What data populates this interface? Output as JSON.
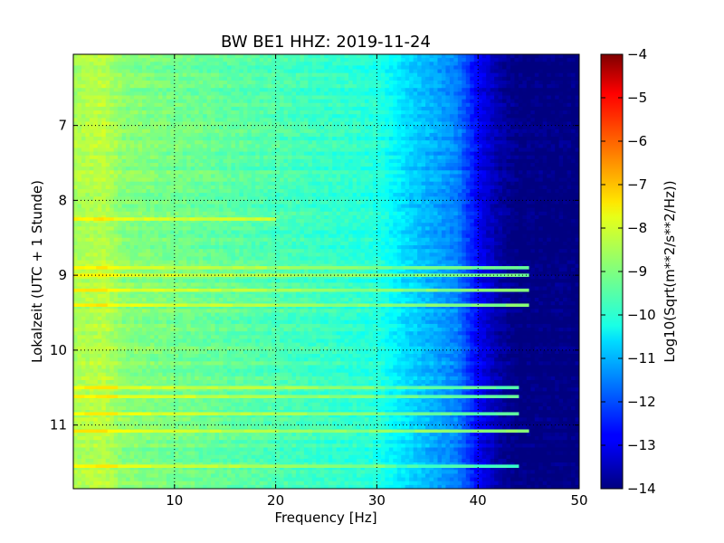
{
  "chart_data": {
    "type": "heatmap",
    "title": "BW BE1 HHZ: 2019-11-24",
    "xlabel": "Frequency [Hz]",
    "ylabel": "Lokalzeit (UTC + 1 Stunde)",
    "colorbar_label": "Log10(Sqrt(m**2/s**2/Hz))",
    "xlim": [
      0,
      50
    ],
    "ylim": [
      6.05,
      11.85
    ],
    "y_inverted": true,
    "x_ticks": [
      10,
      20,
      30,
      40,
      50
    ],
    "y_ticks": [
      7,
      8,
      9,
      10,
      11
    ],
    "color_range": [
      -14,
      -4
    ],
    "colorbar_ticks": [
      -4,
      -5,
      -6,
      -7,
      -8,
      -9,
      -10,
      -11,
      -12,
      -13,
      -14
    ],
    "colormap": "jet",
    "grid": true,
    "spectral_profile": {
      "frequency_hz": [
        0,
        3,
        5,
        10,
        20,
        30,
        33,
        38,
        40,
        42,
        44,
        50
      ],
      "log_amplitude": [
        -8.6,
        -8.4,
        -8.9,
        -9.1,
        -9.5,
        -9.9,
        -10.6,
        -11.5,
        -12.8,
        -13.6,
        -14,
        -14
      ]
    },
    "bright_bands": [
      {
        "time": 8.25,
        "f_from": 0,
        "f_to": 20,
        "level": -8.2
      },
      {
        "time": 8.9,
        "f_from": 0,
        "f_to": 45,
        "level": -9.1
      },
      {
        "time": 9.0,
        "f_from": 0,
        "f_to": 45,
        "level": -9.0
      },
      {
        "time": 9.2,
        "f_from": 0,
        "f_to": 45,
        "level": -9.0
      },
      {
        "time": 9.4,
        "f_from": 0,
        "f_to": 45,
        "level": -9.0
      },
      {
        "time": 10.5,
        "f_from": 0,
        "f_to": 44,
        "level": -9.3
      },
      {
        "time": 10.62,
        "f_from": 0,
        "f_to": 44,
        "level": -9.3
      },
      {
        "time": 10.85,
        "f_from": 0,
        "f_to": 44,
        "level": -9.3
      },
      {
        "time": 11.08,
        "f_from": 0,
        "f_to": 45,
        "level": -8.9
      },
      {
        "time": 11.55,
        "f_from": 0,
        "f_to": 44,
        "level": -9.6
      }
    ]
  }
}
